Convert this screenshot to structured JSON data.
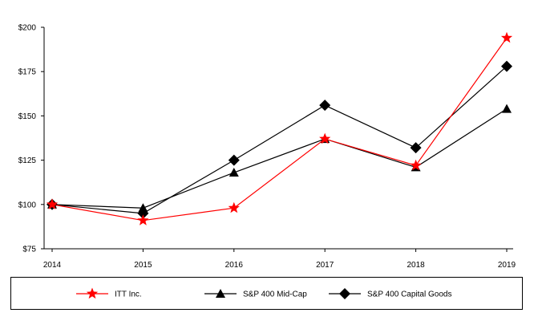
{
  "chart_data": {
    "type": "line",
    "title": "",
    "xlabel": "",
    "ylabel": "",
    "x": [
      "2014",
      "2015",
      "2016",
      "2017",
      "2018",
      "2019"
    ],
    "ylim": [
      75,
      200
    ],
    "yticks": [
      75,
      100,
      125,
      150,
      175,
      200
    ],
    "ytick_labels": [
      "$75",
      "$100",
      "$125",
      "$150",
      "$175",
      "$200"
    ],
    "grid": false,
    "legend_position": "bottom",
    "series": [
      {
        "name": "ITT Inc.",
        "color": "#ff0000",
        "marker": "star",
        "values": [
          100,
          91,
          98,
          137,
          122,
          194
        ]
      },
      {
        "name": "S&P 400 Mid-Cap",
        "color": "#000000",
        "marker": "triangle",
        "values": [
          100,
          98,
          118,
          137,
          121,
          154
        ]
      },
      {
        "name": "S&P 400 Capital Goods",
        "color": "#000000",
        "marker": "diamond",
        "values": [
          100,
          95,
          125,
          156,
          132,
          178
        ]
      }
    ]
  }
}
